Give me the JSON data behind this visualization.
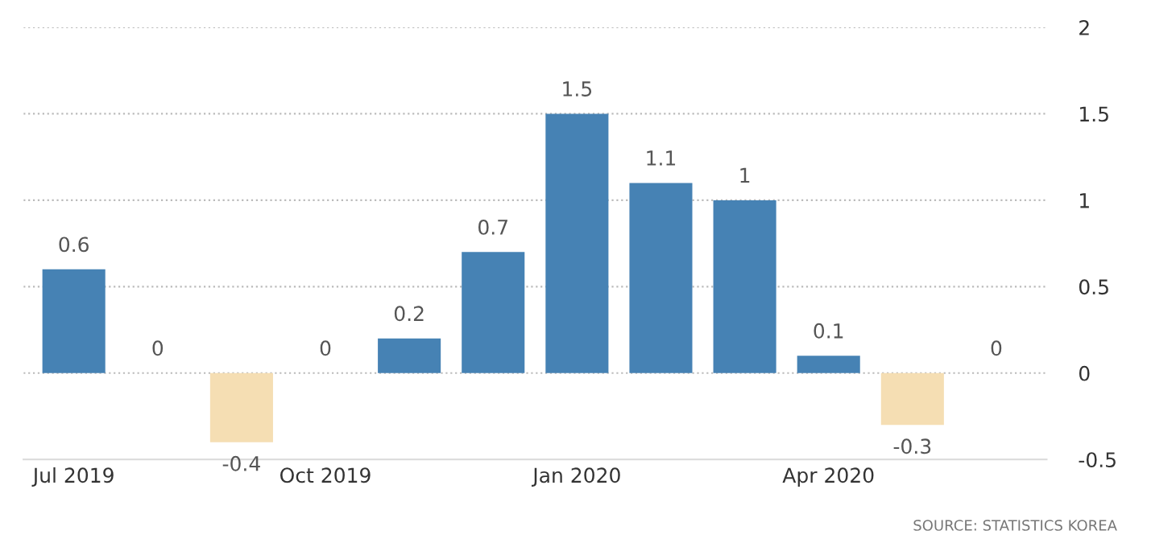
{
  "chart_data": {
    "type": "bar",
    "categories": [
      "Jul 2019",
      null,
      null,
      "Oct 2019",
      null,
      null,
      "Jan 2020",
      null,
      null,
      "Apr 2020",
      null,
      null
    ],
    "values": [
      0.6,
      0,
      -0.4,
      0,
      0.2,
      0.7,
      1.5,
      1.1,
      1,
      0.1,
      -0.3,
      0
    ],
    "colors": [
      "#4682b4",
      "#4682b4",
      "#f5deb3",
      "#4682b4",
      "#4682b4",
      "#4682b4",
      "#4682b4",
      "#4682b4",
      "#4682b4",
      "#4682b4",
      "#f5deb3",
      "#4682b4"
    ],
    "ylim": [
      -0.5,
      2
    ],
    "yticks": [
      -0.5,
      0,
      0.5,
      1,
      1.5,
      2
    ],
    "grid": "y",
    "data_labels": true,
    "annotations": [
      "SOURCE: STATISTICS KOREA"
    ]
  }
}
